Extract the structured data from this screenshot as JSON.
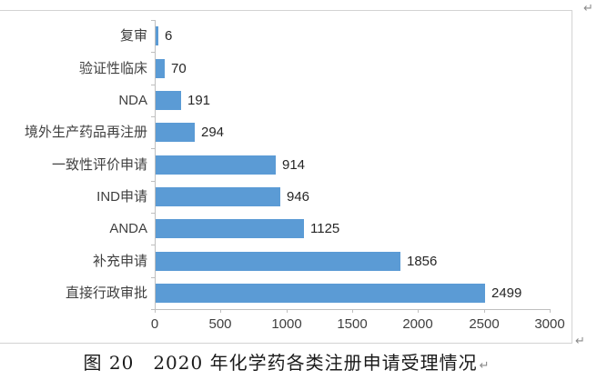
{
  "chart_data": {
    "type": "bar",
    "orientation": "horizontal",
    "categories": [
      "复审",
      "验证性临床",
      "NDA",
      "境外生产药品再注册",
      "一致性评价申请",
      "IND申请",
      "ANDA",
      "补充申请",
      "直接行政审批"
    ],
    "values": [
      6,
      70,
      191,
      294,
      914,
      946,
      1125,
      1856,
      2499
    ],
    "data_labels": [
      "6",
      "70",
      "191",
      "294",
      "914",
      "946",
      "1125",
      "1856",
      "2499"
    ],
    "xlim": [
      0,
      3000
    ],
    "xticks": [
      0,
      500,
      1000,
      1500,
      2000,
      2500,
      3000
    ],
    "xtick_labels": [
      "0",
      "500",
      "1000",
      "1500",
      "2000",
      "2500",
      "3000"
    ],
    "bar_color": "#5b9bd5",
    "axis_color": "#bfbfbf",
    "label_color": "#3f3f3f",
    "grid": false,
    "legend": "none",
    "title": ""
  },
  "caption": {
    "text": "图 20　2020 年化学药各类注册申请受理情况"
  },
  "marks": {
    "paragraph_mark": "↵"
  }
}
